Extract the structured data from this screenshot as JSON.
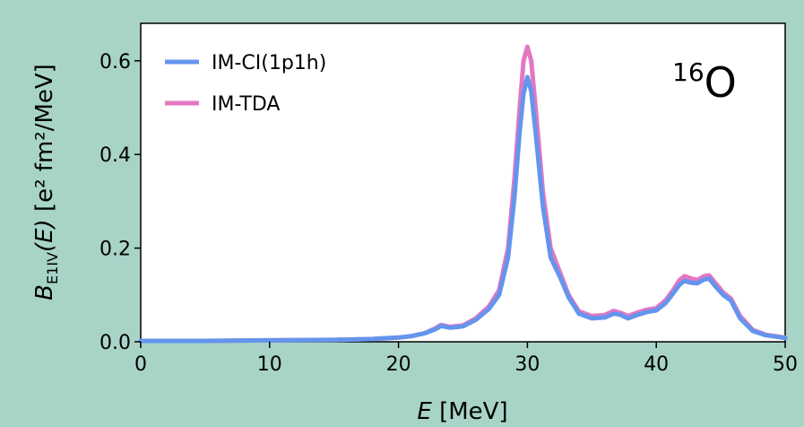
{
  "chart_data": {
    "type": "line",
    "xlabel_italic": "E",
    "xlabel_unit": " [MeV]",
    "ylabel_italic_B": "B",
    "ylabel_sub": "E1IV",
    "ylabel_arg": "(E)",
    "ylabel_unit": " [e² fm²/MeV]",
    "nucleus_mass": "16",
    "nucleus_symbol": "O",
    "xlim": [
      0,
      50
    ],
    "ylim": [
      0,
      0.68
    ],
    "xticks": [
      0,
      10,
      20,
      30,
      40,
      50
    ],
    "yticks": [
      0.0,
      0.2,
      0.4,
      0.6
    ],
    "xtick_labels": [
      "0",
      "10",
      "20",
      "30",
      "40",
      "50"
    ],
    "ytick_labels": [
      "0.0",
      "0.2",
      "0.4",
      "0.6"
    ],
    "legend_position": "top-left",
    "series": [
      {
        "name": "IM-TDA",
        "color": "#e377c2",
        "x": [
          0,
          5,
          10,
          15,
          18,
          20,
          21,
          22,
          22.8,
          23.3,
          24,
          25,
          26,
          27,
          27.8,
          28.5,
          29,
          29.4,
          29.7,
          30,
          30.3,
          30.7,
          31.2,
          31.8,
          32.5,
          33.2,
          34,
          35,
          36,
          36.7,
          37.2,
          37.8,
          38.5,
          39.2,
          40,
          40.7,
          41.3,
          41.8,
          42.2,
          42.7,
          43.2,
          43.7,
          44.1,
          44.6,
          45.2,
          45.8,
          46.5,
          47.5,
          48.5,
          50
        ],
        "y": [
          0.002,
          0.002,
          0.003,
          0.004,
          0.006,
          0.009,
          0.012,
          0.018,
          0.028,
          0.036,
          0.032,
          0.035,
          0.05,
          0.075,
          0.11,
          0.2,
          0.35,
          0.5,
          0.6,
          0.63,
          0.6,
          0.48,
          0.32,
          0.2,
          0.15,
          0.1,
          0.065,
          0.055,
          0.057,
          0.066,
          0.062,
          0.055,
          0.062,
          0.068,
          0.072,
          0.088,
          0.11,
          0.132,
          0.14,
          0.135,
          0.132,
          0.14,
          0.142,
          0.125,
          0.105,
          0.092,
          0.055,
          0.025,
          0.015,
          0.009
        ]
      },
      {
        "name": "IM-CI(1p1h)",
        "color": "#6495ed",
        "x": [
          0,
          5,
          10,
          15,
          18,
          20,
          21,
          22,
          22.8,
          23.3,
          24,
          25,
          26,
          27,
          27.8,
          28.5,
          29,
          29.4,
          29.7,
          30,
          30.3,
          30.7,
          31.2,
          31.8,
          32.5,
          33.2,
          34,
          35,
          36,
          36.7,
          37.2,
          37.8,
          38.5,
          39.2,
          40,
          40.7,
          41.3,
          41.8,
          42.2,
          42.7,
          43.2,
          43.7,
          44.1,
          44.6,
          45.2,
          45.8,
          46.5,
          47.5,
          48.5,
          50
        ],
        "y": [
          0.002,
          0.002,
          0.003,
          0.004,
          0.006,
          0.009,
          0.012,
          0.018,
          0.026,
          0.034,
          0.03,
          0.033,
          0.047,
          0.07,
          0.1,
          0.18,
          0.31,
          0.45,
          0.53,
          0.565,
          0.535,
          0.43,
          0.29,
          0.18,
          0.14,
          0.095,
          0.06,
          0.05,
          0.052,
          0.06,
          0.058,
          0.05,
          0.057,
          0.063,
          0.067,
          0.082,
          0.103,
          0.122,
          0.13,
          0.126,
          0.125,
          0.133,
          0.135,
          0.118,
          0.1,
          0.088,
          0.05,
          0.023,
          0.014,
          0.008
        ]
      }
    ]
  }
}
